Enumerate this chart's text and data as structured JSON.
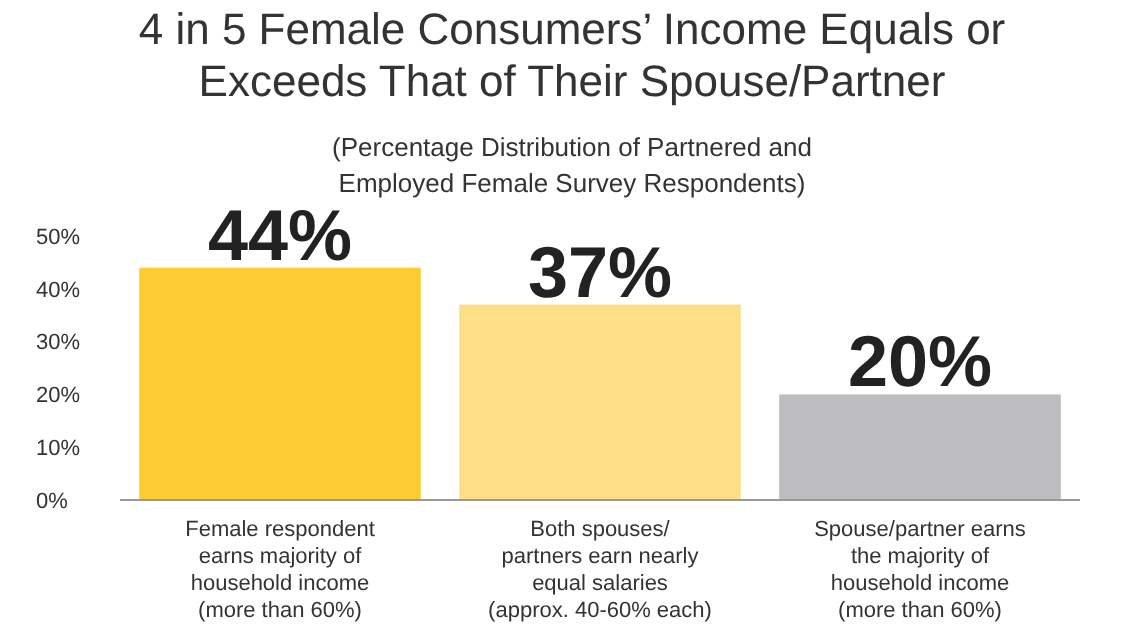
{
  "chart_data": {
    "type": "bar",
    "title": "4 in 5 Female Consumers’ Income Equals or Exceeds That of Their Spouse/Partner",
    "subtitle": "(Percentage Distribution of Partnered and Employed Female Survey Respondents)",
    "categories": [
      "Female respondent earns majority of household income (more than 60%)",
      "Both spouses/ partners earn nearly equal salaries (approx. 40-60% each)",
      "Spouse/partner earns the majority of household income (more than 60%)"
    ],
    "values": [
      44,
      37,
      20
    ],
    "colors": [
      "#fdcb33",
      "#fede86",
      "#bdbdbf"
    ],
    "value_labels": [
      "44%",
      "37%",
      "20%"
    ],
    "ylim": [
      0,
      50
    ],
    "yticks": [
      {
        "value": 0,
        "label": "0%"
      },
      {
        "value": 10,
        "label": "10%"
      },
      {
        "value": 20,
        "label": "20%"
      },
      {
        "value": 30,
        "label": "30%"
      },
      {
        "value": 40,
        "label": "40%"
      },
      {
        "value": 50,
        "label": "50%"
      }
    ],
    "grid": false
  }
}
